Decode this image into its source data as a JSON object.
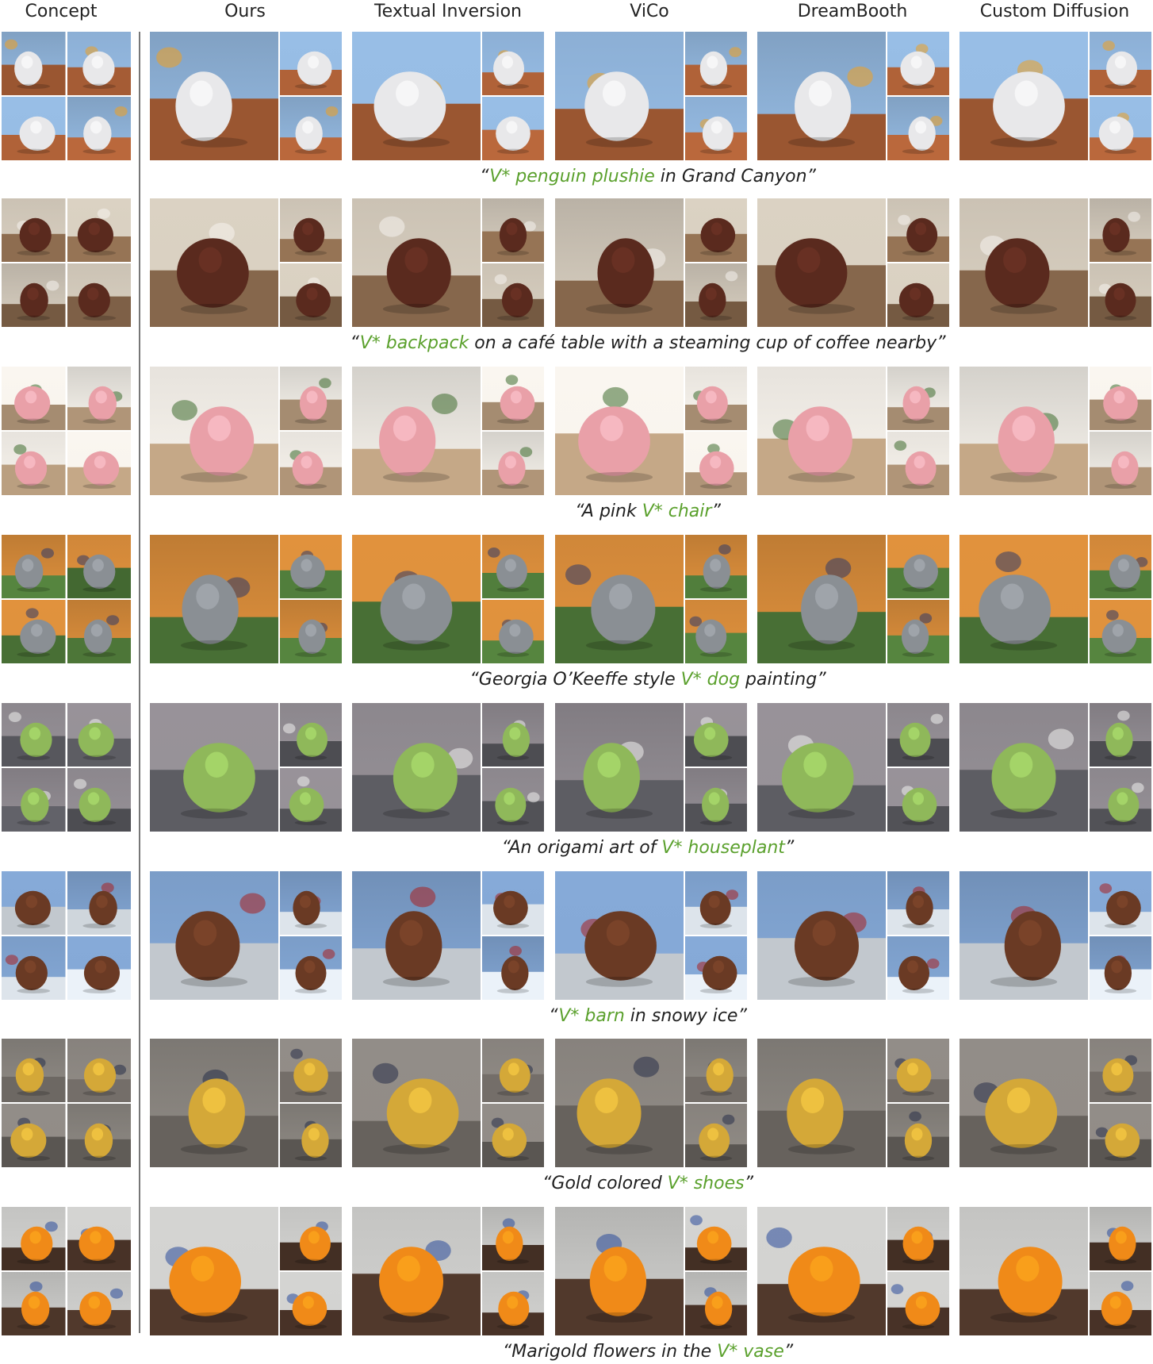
{
  "headers": [
    "Concept",
    "Ours",
    "Textual Inversion",
    "ViCo",
    "DreamBooth",
    "Custom Diffusion"
  ],
  "rows": [
    {
      "caption": {
        "pre": "“",
        "highlight": "V* penguin plushie",
        "post": " in Grand Canyon”"
      },
      "colors": {
        "sky": "#8fb3d9",
        "ground": "#b5653a",
        "subject": "#e8e8ea",
        "accent": "#f0a020"
      }
    },
    {
      "caption": {
        "pre": "“",
        "highlight": "V* backpack",
        "post": " on a café table with a steaming cup of coffee nearby”"
      },
      "colors": {
        "sky": "#cfc6b8",
        "ground": "#8a6a4e",
        "subject": "#5a2a1e",
        "accent": "#f5f2ee"
      }
    },
    {
      "caption": {
        "pre": "“A pink ",
        "highlight": "V* chair",
        "post": "”"
      },
      "colors": {
        "sky": "#ece8e2",
        "ground": "#b59a7c",
        "subject": "#e9a0a8",
        "accent": "#3e6b2e"
      }
    },
    {
      "caption": {
        "pre": "“Georgia O’Keeffe style ",
        "highlight": "V* dog",
        "post": " painting”"
      },
      "colors": {
        "sky": "#d48a3a",
        "ground": "#4f7a3a",
        "subject": "#8a8f94",
        "accent": "#2f3a6a"
      }
    },
    {
      "caption": {
        "pre": "“An origami art of ",
        "highlight": "V* houseplant",
        "post": "”"
      },
      "colors": {
        "sky": "#8f8a90",
        "ground": "#5a5a60",
        "subject": "#8fb85a",
        "accent": "#f0f0ee"
      }
    },
    {
      "caption": {
        "pre": "“",
        "highlight": "V* barn",
        "post": " in snowy ice”"
      },
      "colors": {
        "sky": "#7ea0cc",
        "ground": "#e4ebf2",
        "subject": "#6a3a24",
        "accent": "#a82020"
      }
    },
    {
      "caption": {
        "pre": "“Gold colored ",
        "highlight": "V* shoes",
        "post": "”"
      },
      "colors": {
        "sky": "#8a8580",
        "ground": "#6a6560",
        "subject": "#d4a838",
        "accent": "#283048"
      }
    },
    {
      "caption": {
        "pre": "“Marigold flowers in the ",
        "highlight": "V* vase",
        "post": "”"
      },
      "colors": {
        "sky": "#c8c8c6",
        "ground": "#4a3428",
        "subject": "#f08a18",
        "accent": "#2a4a9a"
      }
    }
  ]
}
